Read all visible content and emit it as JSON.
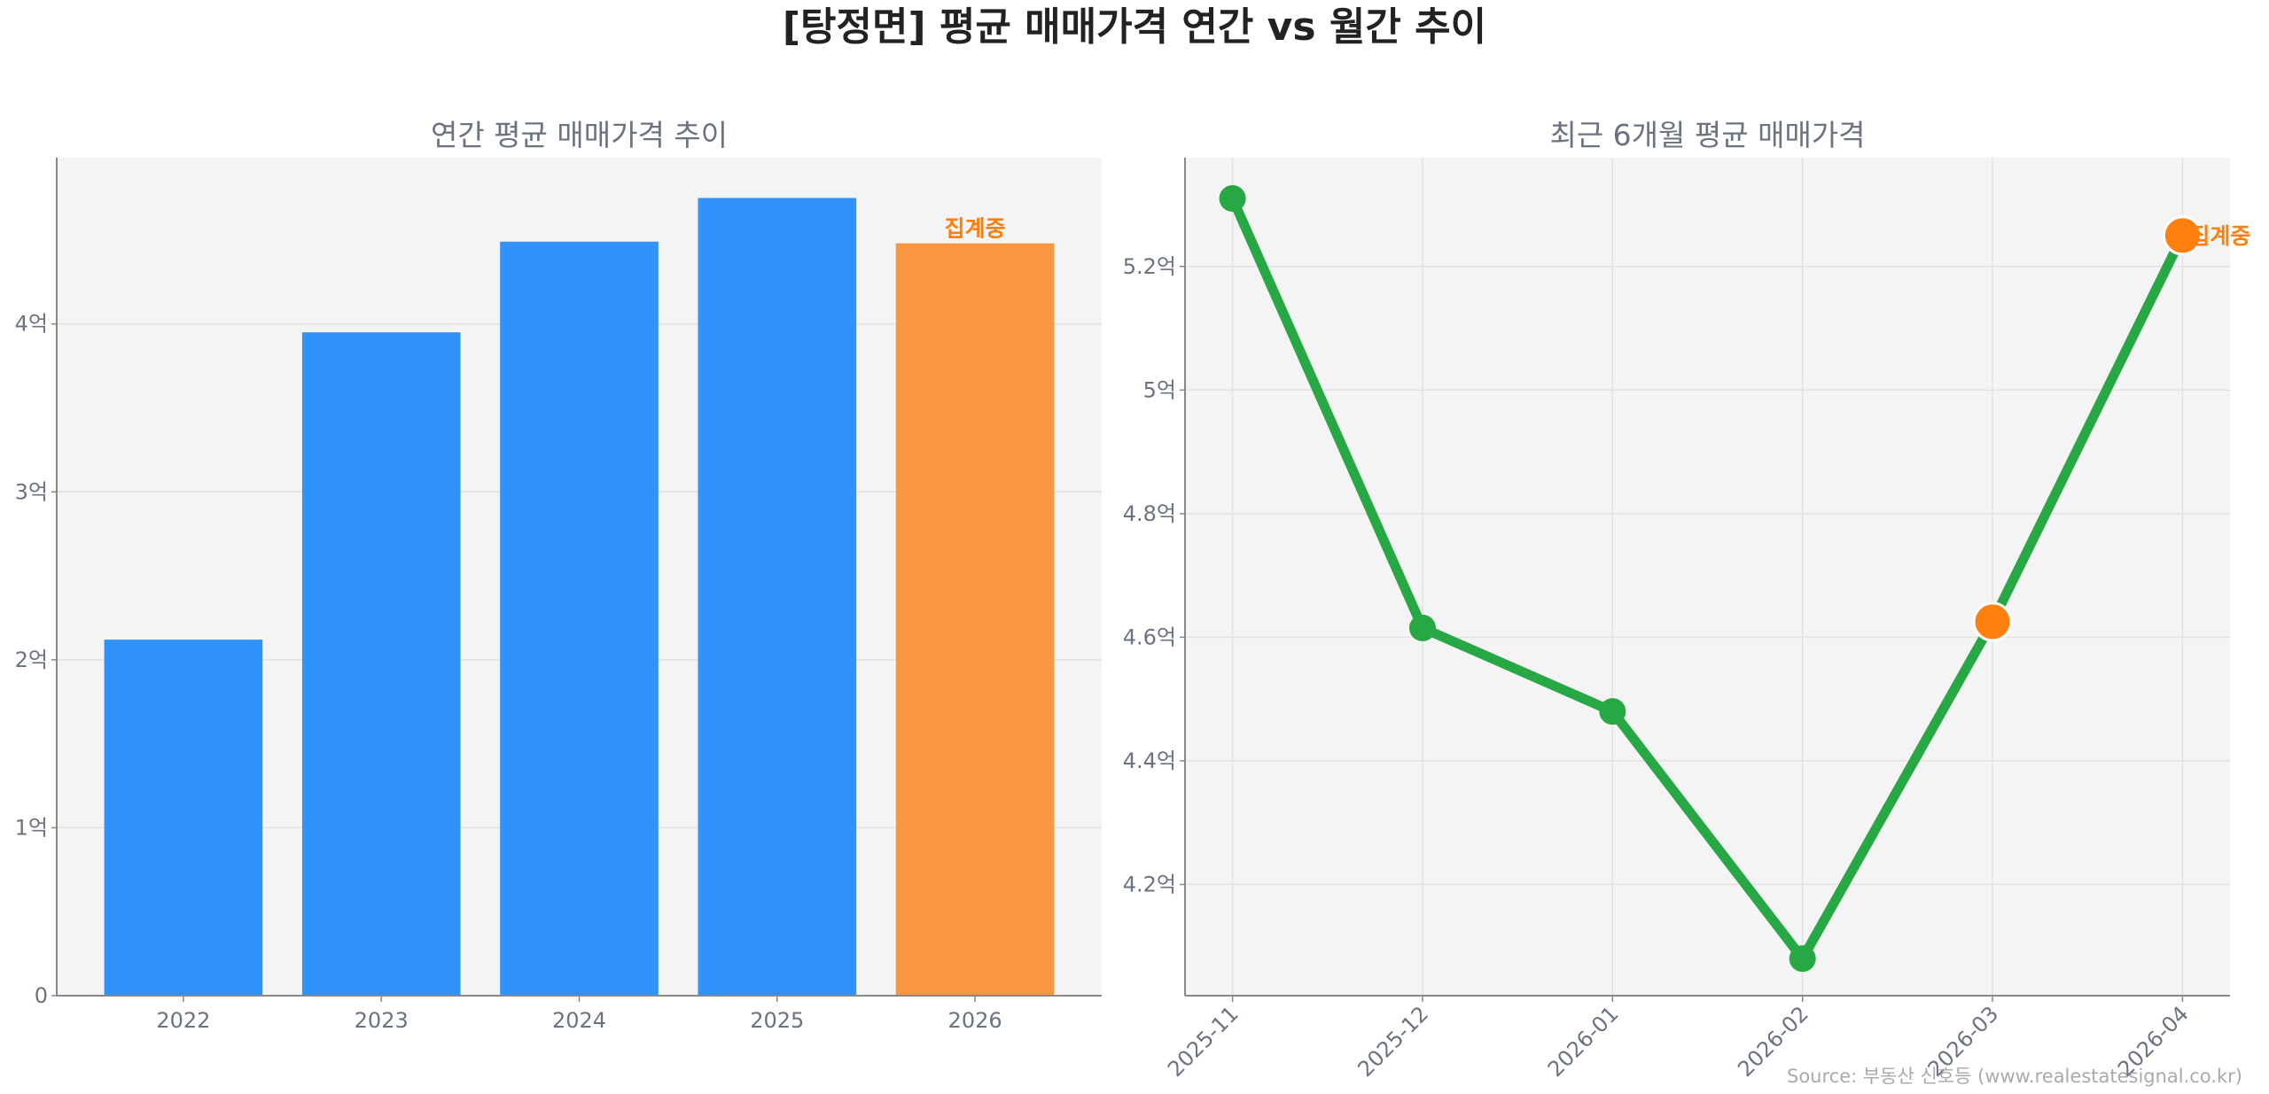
{
  "chart_data": [
    {
      "type": "bar",
      "title": "연간 평균 매매가격 추이",
      "categories": [
        "2022",
        "2023",
        "2024",
        "2025",
        "2026"
      ],
      "values": [
        2.12,
        3.95,
        4.49,
        4.75,
        4.48
      ],
      "unit": "억",
      "ylim": [
        0,
        4.99
      ],
      "yticks": [
        0,
        1,
        2,
        3,
        4
      ],
      "ytick_labels": [
        "0",
        "1억",
        "2억",
        "3억",
        "4억"
      ],
      "bar_colors": [
        "#3092fb",
        "#3092fb",
        "#3092fb",
        "#3092fb",
        "#f99740"
      ],
      "annotation": {
        "category": "2026",
        "text": "집계중"
      },
      "grid": true
    },
    {
      "type": "line",
      "title": "최근 6개월 평균 매매가격",
      "x": [
        "2025-11",
        "2025-12",
        "2026-01",
        "2026-02",
        "2026-03",
        "2026-04"
      ],
      "values": [
        5.31,
        4.615,
        4.48,
        4.08,
        4.625,
        5.25
      ],
      "unit": "억",
      "ylim": [
        4.02,
        5.376
      ],
      "yticks": [
        4.2,
        4.4,
        4.6,
        4.8,
        5.0,
        5.2
      ],
      "ytick_labels": [
        "4.2억",
        "4.4억",
        "4.6억",
        "4.8억",
        "5억",
        "5.2억"
      ],
      "line_color": "#28a745",
      "highlight_color": "#ff7f0e",
      "highlight_points": [
        "2026-03",
        "2026-04"
      ],
      "annotation": {
        "x": "2026-04",
        "text": "집계중"
      },
      "grid": true
    }
  ],
  "title": "[탕정면] 평균 매매가격 연간 vs 월간 추이",
  "source": "Source: 부동산 신호등 (www.realestatesignal.co.kr)"
}
